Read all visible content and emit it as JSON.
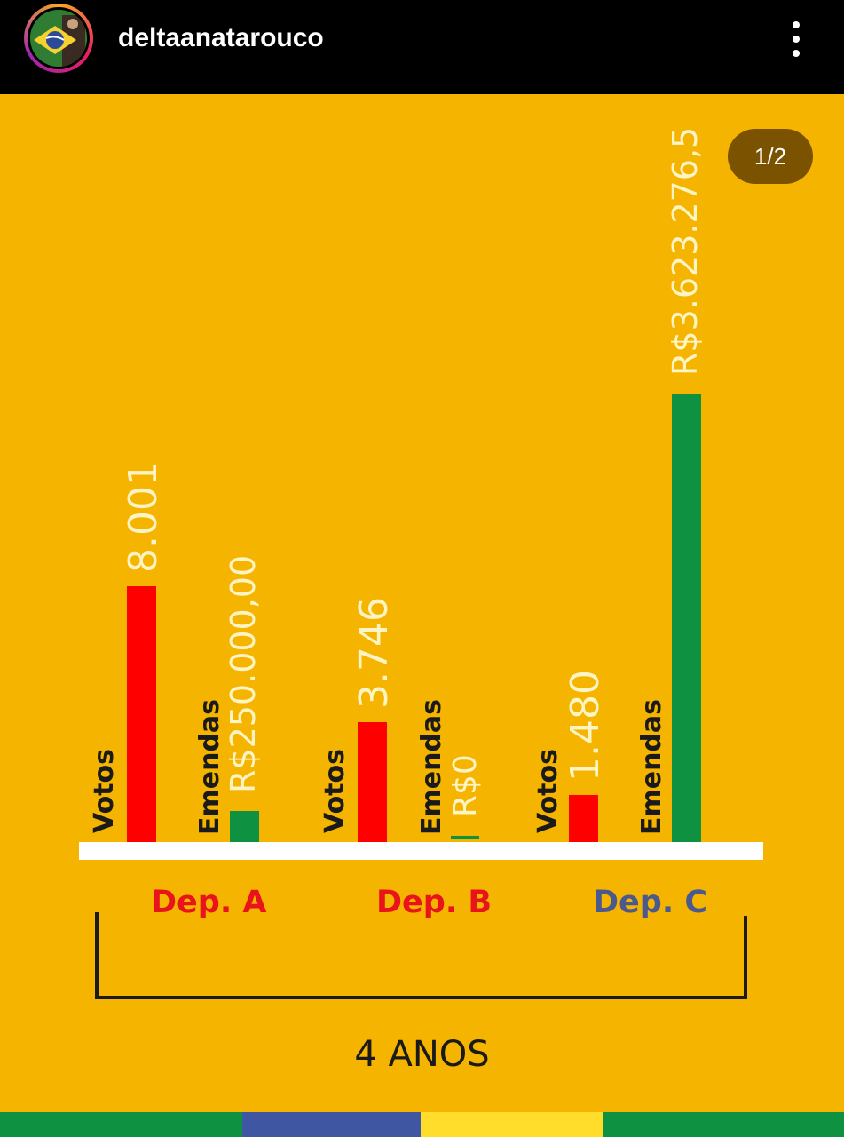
{
  "header": {
    "username": "deltaanatarouco",
    "menu_icon": "more-vertical-icon"
  },
  "pager": {
    "label": "1/2"
  },
  "chart_data": {
    "type": "bar",
    "categories": [
      "Dep. A",
      "Dep. B",
      "Dep. C"
    ],
    "series": [
      {
        "name": "Votos",
        "values": [
          8001,
          3746,
          1480
        ],
        "value_labels": [
          "8.001",
          "3.746",
          "1.480"
        ],
        "color": "#FF0000"
      },
      {
        "name": "Emendas",
        "values": [
          250000,
          0,
          3623276.5
        ],
        "value_labels": [
          "R$250.000,00",
          "R$0",
          "R$3.623.276,5"
        ],
        "color": "#0E9140"
      }
    ],
    "category_colors": [
      "#E8131B",
      "#E8131B",
      "#4A5A8E"
    ],
    "period_label": "4 ANOS",
    "xlabel": "",
    "ylabel": ""
  },
  "colors": {
    "background": "#F5B400",
    "votes": "#FF0000",
    "emendas": "#0E9140",
    "footer_green": "#0E9140",
    "footer_blue": "#3F57A3",
    "footer_yellow": "#FFDD2A"
  }
}
